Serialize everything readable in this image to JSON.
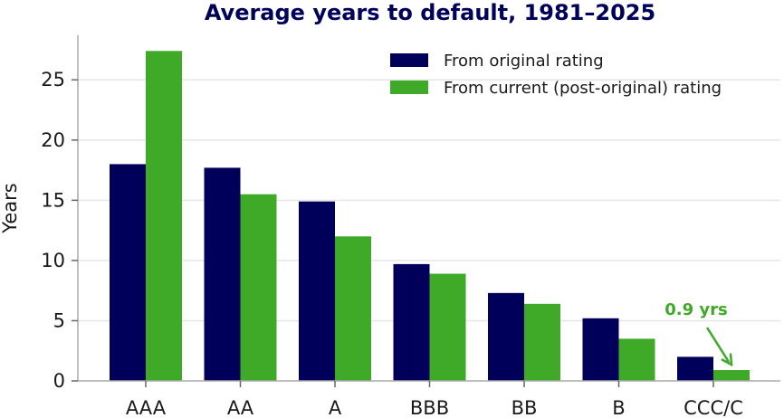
{
  "chart_data": {
    "type": "bar",
    "title": "Average years to default, 1981–2025",
    "xlabel": "",
    "ylabel": "Years",
    "categories": [
      "AAA",
      "AA",
      "A",
      "BBB",
      "BB",
      "B",
      "CCC/C"
    ],
    "series": [
      {
        "name": "From original rating",
        "color": "#00005a",
        "values": [
          18.0,
          17.7,
          14.9,
          9.7,
          7.3,
          5.2,
          2.0
        ]
      },
      {
        "name": "From current (post-original) rating",
        "color": "#3faa28",
        "values": [
          27.4,
          15.5,
          12.0,
          8.9,
          6.4,
          3.5,
          0.9
        ]
      }
    ],
    "ylim": [
      0,
      28.7
    ],
    "yticks": [
      0,
      5,
      10,
      15,
      20,
      25
    ],
    "grid": "horizontal",
    "legend_position": "top-right",
    "annotation": {
      "text": "0.9 yrs",
      "category": "CCC/C",
      "series": 1,
      "color": "#3faa28"
    },
    "title_color": "#00005a"
  }
}
